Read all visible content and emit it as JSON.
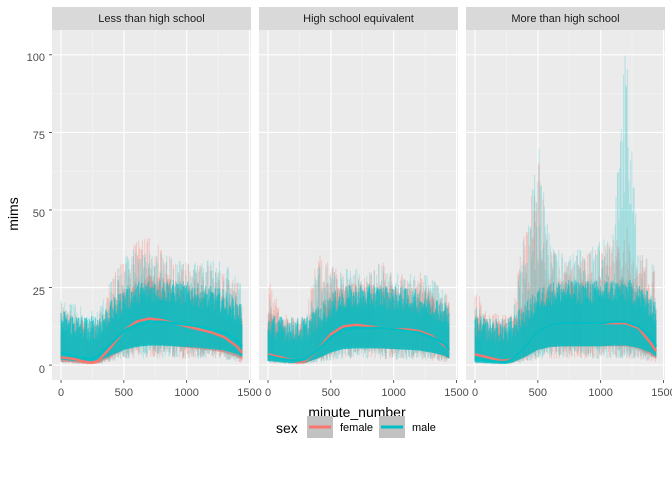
{
  "chart_data": {
    "type": "line",
    "chart_style": "faceted line chart with per-subject minute traces and smoothed trend lines",
    "xlabel": "minute_number",
    "ylabel": "mims",
    "xlim": [
      0,
      1440
    ],
    "ylim": [
      0,
      108
    ],
    "x_ticks": [
      0,
      500,
      1000,
      1500
    ],
    "y_ticks": [
      0,
      25,
      50,
      75,
      100
    ],
    "x_tick_labels": [
      "0",
      "500",
      "1000",
      "1500"
    ],
    "y_tick_labels": [
      "0",
      "25",
      "50",
      "75",
      "100"
    ],
    "grid": true,
    "legend_position": "bottom",
    "legend_title": "sex",
    "series": [
      {
        "name": "female",
        "color": "#F8766D"
      },
      {
        "name": "male",
        "color": "#00BFC4"
      }
    ],
    "facets": [
      {
        "label": "Less than high school",
        "smooth": {
          "x": [
            0,
            100,
            200,
            250,
            300,
            400,
            500,
            600,
            700,
            800,
            900,
            1000,
            1100,
            1200,
            1300,
            1400,
            1440
          ],
          "female": [
            2.5,
            2,
            1,
            0.8,
            1.5,
            6,
            11,
            14,
            15,
            14.5,
            13.5,
            12.5,
            11.5,
            10.5,
            9,
            6,
            4
          ],
          "male": [
            4,
            3,
            2,
            2,
            3,
            7,
            11,
            13,
            14,
            14,
            13.5,
            13,
            12.5,
            11.5,
            10.5,
            8,
            6
          ]
        },
        "envelope_upper": {
          "x": [
            0,
            100,
            200,
            300,
            400,
            500,
            600,
            700,
            800,
            900,
            1000,
            1100,
            1200,
            1300,
            1440
          ],
          "female": [
            20,
            17,
            15,
            16,
            28,
            34,
            40,
            41,
            38,
            34,
            33,
            32,
            32,
            30,
            25
          ],
          "male": [
            22,
            20,
            18,
            18,
            27,
            35,
            38,
            36,
            37,
            34,
            33,
            33,
            34,
            33,
            26
          ]
        }
      },
      {
        "label": "High school equivalent",
        "smooth": {
          "x": [
            0,
            100,
            200,
            250,
            300,
            400,
            500,
            600,
            700,
            800,
            900,
            1000,
            1100,
            1200,
            1300,
            1400,
            1440
          ],
          "female": [
            3.5,
            2.5,
            1.5,
            1,
            1.5,
            5,
            10,
            12.5,
            13,
            12.5,
            12,
            11.5,
            11.5,
            11,
            9.5,
            6.5,
            5
          ],
          "male": [
            3,
            2,
            1.5,
            1.5,
            2,
            5,
            9,
            11.5,
            12,
            12,
            12,
            11.5,
            11,
            10.5,
            9,
            7,
            5
          ]
        },
        "envelope_upper": {
          "x": [
            0,
            100,
            200,
            300,
            400,
            500,
            600,
            700,
            800,
            900,
            1000,
            1100,
            1200,
            1300,
            1440
          ],
          "female": [
            28,
            18,
            14,
            16,
            38,
            32,
            30,
            30,
            29,
            34,
            28,
            30,
            30,
            28,
            22
          ],
          "male": [
            24,
            16,
            14,
            15,
            32,
            33,
            31,
            31,
            30,
            33,
            30,
            30,
            30,
            28,
            22
          ]
        }
      },
      {
        "label": "More than high school",
        "smooth": {
          "x": [
            0,
            100,
            200,
            250,
            300,
            400,
            500,
            600,
            700,
            800,
            900,
            1000,
            1100,
            1200,
            1300,
            1400,
            1440
          ],
          "female": [
            3.5,
            2.5,
            1.5,
            1.5,
            2,
            6,
            11,
            13,
            13.5,
            13.5,
            13.5,
            13.5,
            13.5,
            13.5,
            12,
            7,
            4.5
          ],
          "male": [
            2,
            1.5,
            1,
            1,
            2,
            6,
            11,
            13,
            13.5,
            13.5,
            13.5,
            13.5,
            14,
            14,
            12.5,
            9,
            6
          ]
        },
        "envelope_upper": {
          "x": [
            0,
            100,
            200,
            300,
            400,
            500,
            600,
            700,
            800,
            900,
            1000,
            1100,
            1200,
            1300,
            1440
          ],
          "female": [
            26,
            18,
            16,
            18,
            50,
            68,
            38,
            34,
            35,
            36,
            38,
            40,
            45,
            38,
            30
          ],
          "male": [
            20,
            15,
            14,
            16,
            45,
            73,
            40,
            36,
            37,
            38,
            40,
            42,
            105,
            40,
            32
          ]
        }
      }
    ]
  }
}
